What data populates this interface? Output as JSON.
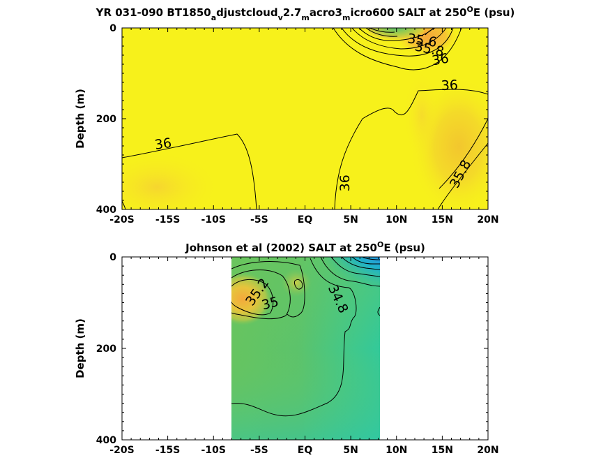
{
  "chart_data": [
    {
      "type": "heatmap",
      "title": "YR 031-090 BT1850_adjustcloud_v2.7_macro3_micro600 SALT at 250°E (psu)",
      "title_parts": [
        "YR 031-090 BT1850",
        "a",
        "djustcloud",
        "v",
        "2.7",
        "m",
        "acro3",
        "m",
        "icro600 SALT at 250",
        "O",
        "E (psu)"
      ],
      "ylabel": "Depth (m)",
      "x_ticks": [
        "-20S",
        "-15S",
        "-10S",
        "-5S",
        "EQ",
        "5N",
        "10N",
        "15N",
        "20N"
      ],
      "x_tick_values": [
        -20,
        -15,
        -10,
        -5,
        0,
        5,
        10,
        15,
        20
      ],
      "y_ticks": [
        "0",
        "200",
        "400"
      ],
      "y_tick_values": [
        0,
        200,
        400
      ],
      "xlim": [
        -20,
        20
      ],
      "ylim": [
        0,
        400
      ],
      "y_reversed": true,
      "contour_labels": [
        {
          "text": "35.6",
          "lat": 12.8,
          "depth": 28,
          "rot": 8
        },
        {
          "text": "35.8",
          "lat": 13.6,
          "depth": 47,
          "rot": 12
        },
        {
          "text": "36",
          "lat": 14.8,
          "depth": 70,
          "rot": -10
        },
        {
          "text": "36",
          "lat": 15.8,
          "depth": 127,
          "rot": -3
        },
        {
          "text": "36",
          "lat": -15.5,
          "depth": 256,
          "rot": -8
        },
        {
          "text": "36",
          "lat": 4.4,
          "depth": 342,
          "rot": -90
        },
        {
          "text": "35.8",
          "lat": 17,
          "depth": 322,
          "rot": -62
        }
      ]
    },
    {
      "type": "heatmap",
      "title": "Johnson et al (2002) SALT at 250°E (psu)",
      "title_parts": [
        "Johnson et al (2002) SALT at 250",
        "O",
        "E (psu)"
      ],
      "ylabel": "Depth (m)",
      "x_ticks": [
        "-20S",
        "-15S",
        "-10S",
        "-5S",
        "EQ",
        "5N",
        "10N",
        "15N",
        "20N"
      ],
      "x_tick_values": [
        -20,
        -15,
        -10,
        -5,
        0,
        5,
        10,
        15,
        20
      ],
      "y_ticks": [
        "0",
        "200",
        "400"
      ],
      "y_tick_values": [
        0,
        200,
        400
      ],
      "xlim": [
        -20,
        20
      ],
      "ylim": [
        0,
        400
      ],
      "y_reversed": true,
      "data_extent_lat": [
        -8,
        8.2
      ],
      "contour_labels": [
        {
          "text": "35.2",
          "lat": -5.2,
          "depth": 77,
          "rot": -55
        },
        {
          "text": "35",
          "lat": -3.8,
          "depth": 102,
          "rot": -15
        },
        {
          "text": "34.8",
          "lat": 3.6,
          "depth": 92,
          "rot": 65
        }
      ]
    }
  ]
}
